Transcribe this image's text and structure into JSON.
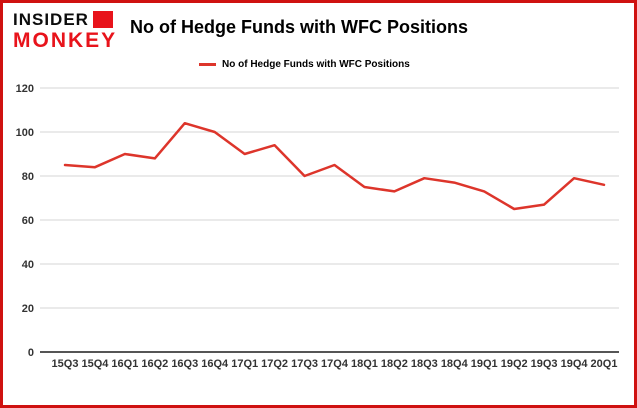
{
  "brand": {
    "line1": "INSIDER",
    "line2": "MONKEY"
  },
  "header": {
    "title": "No of Hedge Funds with WFC Positions"
  },
  "legend": {
    "label": "No of Hedge Funds with WFC Positions",
    "position": "top-left"
  },
  "colors": {
    "accent_border": "#cf1110",
    "logo_red": "#e8131b",
    "line": "#dd352b",
    "grid": "#d6d6d6",
    "axis": "#555555",
    "tick_text": "#333333"
  },
  "chart_data": {
    "type": "line",
    "title": "No of Hedge Funds with WFC Positions",
    "series_name": "No of Hedge Funds with WFC Positions",
    "categories": [
      "15Q3",
      "15Q4",
      "16Q1",
      "16Q2",
      "16Q3",
      "16Q4",
      "17Q1",
      "17Q2",
      "17Q3",
      "17Q4",
      "18Q1",
      "18Q2",
      "18Q3",
      "18Q4",
      "19Q1",
      "19Q2",
      "19Q3",
      "19Q4",
      "20Q1"
    ],
    "values": [
      85,
      84,
      90,
      88,
      104,
      100,
      90,
      94,
      80,
      85,
      75,
      73,
      79,
      77,
      73,
      65,
      67,
      79,
      76
    ],
    "xlabel": "",
    "ylabel": "",
    "ylim": [
      0,
      120
    ],
    "yticks": [
      0,
      20,
      40,
      60,
      80,
      100,
      120
    ],
    "grid": true,
    "grid_lines": "horizontal",
    "legend_position": "top-left"
  }
}
